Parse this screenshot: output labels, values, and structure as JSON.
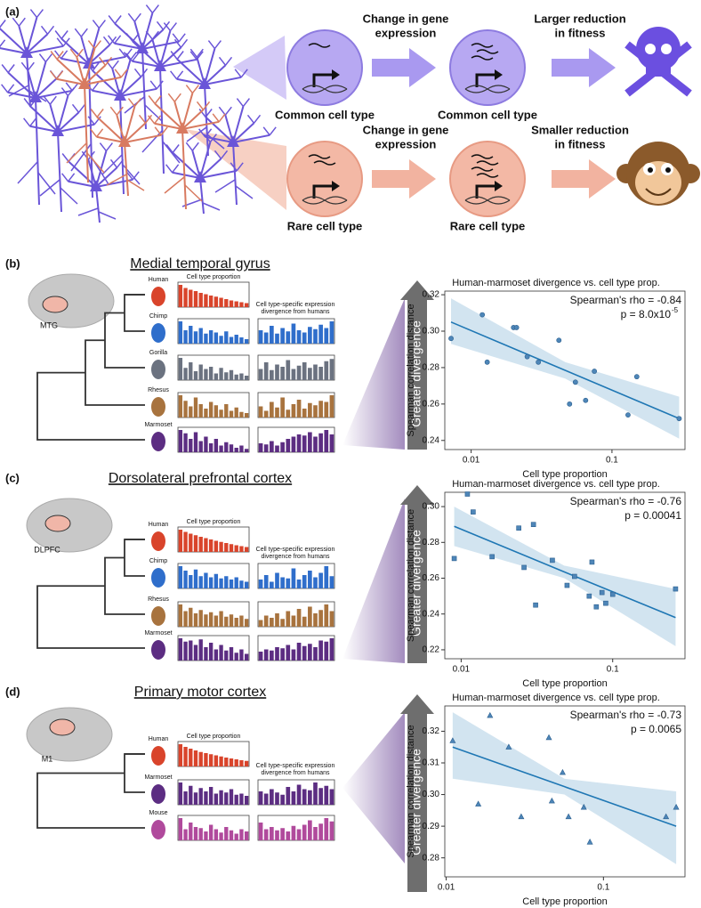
{
  "panel_a": {
    "label": "(a)",
    "rows": [
      {
        "change": [
          "Change in gene",
          "expression"
        ],
        "cells": [
          "Common cell type",
          "Common cell type"
        ],
        "outcome": [
          "Larger reduction",
          "in fitness"
        ]
      },
      {
        "change": [
          "Change in gene",
          "expression"
        ],
        "cells": [
          "Rare cell type",
          "Rare cell type"
        ],
        "outcome": [
          "Smaller reduction",
          "in fitness"
        ]
      }
    ]
  },
  "panels": [
    {
      "label": "(b)",
      "region": "Medial temporal gyrus",
      "brain_label": "MTG",
      "prop_header": "Cell type proportion",
      "div_header": [
        "Cell type-specific expression",
        "divergence from humans"
      ],
      "arrow": "Greater divergence",
      "species": [
        {
          "name": "Human",
          "color": "#d9442b",
          "prop": [
            1,
            0.86,
            0.78,
            0.72,
            0.64,
            0.58,
            0.52,
            0.47,
            0.42,
            0.36,
            0.3,
            0.26,
            0.22,
            0.18
          ]
        },
        {
          "name": "Chimp",
          "color": "#2f6ecb",
          "prop": [
            1,
            0.6,
            0.8,
            0.55,
            0.7,
            0.45,
            0.6,
            0.5,
            0.35,
            0.55,
            0.3,
            0.4,
            0.28,
            0.2
          ],
          "div": [
            0.6,
            0.5,
            0.8,
            0.45,
            0.7,
            0.55,
            0.9,
            0.6,
            0.5,
            0.75,
            0.65,
            0.85,
            0.7,
            1
          ]
        },
        {
          "name": "Gorilla",
          "color": "#6b7280",
          "prop": [
            1,
            0.55,
            0.8,
            0.4,
            0.7,
            0.5,
            0.6,
            0.3,
            0.55,
            0.35,
            0.45,
            0.25,
            0.3,
            0.2
          ],
          "div": [
            0.5,
            0.8,
            0.45,
            0.7,
            0.6,
            0.9,
            0.5,
            0.65,
            0.8,
            0.55,
            0.7,
            0.6,
            0.85,
            0.95
          ]
        },
        {
          "name": "Rhesus",
          "color": "#a8733e",
          "prop": [
            1,
            0.75,
            0.5,
            0.9,
            0.6,
            0.4,
            0.7,
            0.55,
            0.35,
            0.6,
            0.3,
            0.45,
            0.25,
            0.2
          ],
          "div": [
            0.5,
            0.3,
            0.7,
            0.45,
            0.9,
            0.35,
            0.6,
            0.8,
            0.4,
            0.65,
            0.55,
            0.75,
            0.7,
            1
          ]
        },
        {
          "name": "Marmoset",
          "color": "#5c2d82",
          "prop": [
            1,
            0.85,
            0.6,
            0.9,
            0.5,
            0.7,
            0.4,
            0.6,
            0.3,
            0.45,
            0.35,
            0.2,
            0.3,
            0.15
          ],
          "div": [
            0.4,
            0.35,
            0.5,
            0.3,
            0.45,
            0.6,
            0.7,
            0.8,
            0.75,
            0.9,
            0.7,
            0.85,
            1,
            0.8
          ]
        }
      ]
    },
    {
      "label": "(c)",
      "region": "Dorsolateral prefrontal cortex",
      "brain_label": "DLPFC",
      "prop_header": "Cell type proportion",
      "div_header": [
        "Cell type-specific expression",
        "divergence from humans"
      ],
      "arrow": "Greater divergence",
      "species": [
        {
          "name": "Human",
          "color": "#d9442b",
          "prop": [
            1,
            0.9,
            0.82,
            0.75,
            0.68,
            0.62,
            0.56,
            0.5,
            0.45,
            0.4,
            0.35,
            0.3,
            0.26,
            0.22
          ]
        },
        {
          "name": "Chimp",
          "color": "#2f6ecb",
          "prop": [
            1,
            0.8,
            0.6,
            0.85,
            0.55,
            0.7,
            0.5,
            0.65,
            0.45,
            0.55,
            0.4,
            0.5,
            0.35,
            0.3
          ],
          "div": [
            0.4,
            0.6,
            0.3,
            0.7,
            0.5,
            0.45,
            0.9,
            0.4,
            0.6,
            0.8,
            0.5,
            0.7,
            1,
            0.55
          ]
        },
        {
          "name": "Rhesus",
          "color": "#a8733e",
          "prop": [
            1,
            0.7,
            0.85,
            0.6,
            0.75,
            0.55,
            0.65,
            0.5,
            0.7,
            0.45,
            0.55,
            0.4,
            0.5,
            0.35
          ],
          "div": [
            0.3,
            0.5,
            0.4,
            0.6,
            0.35,
            0.7,
            0.5,
            0.8,
            0.45,
            0.9,
            0.6,
            0.75,
            1,
            0.7
          ]
        },
        {
          "name": "Marmoset",
          "color": "#5c2d82",
          "prop": [
            1,
            0.85,
            0.9,
            0.7,
            0.95,
            0.6,
            0.8,
            0.5,
            0.7,
            0.45,
            0.6,
            0.35,
            0.5,
            0.3
          ],
          "div": [
            0.4,
            0.5,
            0.45,
            0.6,
            0.55,
            0.7,
            0.5,
            0.8,
            0.65,
            0.75,
            0.6,
            0.9,
            0.85,
            1
          ]
        }
      ]
    },
    {
      "label": "(d)",
      "region": "Primary motor cortex",
      "brain_label": "M1",
      "prop_header": "Cell type proportion",
      "div_header": [
        "Cell type-specific expression",
        "divergence from humans"
      ],
      "arrow": "Greater divergence",
      "species": [
        {
          "name": "Human",
          "color": "#d9442b",
          "prop": [
            1,
            0.88,
            0.8,
            0.72,
            0.65,
            0.6,
            0.55,
            0.5,
            0.45,
            0.4,
            0.36,
            0.32,
            0.28,
            0.25
          ]
        },
        {
          "name": "Marmoset",
          "color": "#5c2d82",
          "prop": [
            1,
            0.6,
            0.85,
            0.55,
            0.75,
            0.6,
            0.8,
            0.5,
            0.65,
            0.55,
            0.7,
            0.45,
            0.5,
            0.4
          ],
          "div": [
            0.6,
            0.5,
            0.7,
            0.55,
            0.45,
            0.8,
            0.6,
            0.9,
            0.7,
            0.65,
            1,
            0.75,
            0.85,
            0.7
          ]
        },
        {
          "name": "Mouse",
          "color": "#b04a9c",
          "prop": [
            1,
            0.5,
            0.8,
            0.6,
            0.55,
            0.4,
            0.7,
            0.5,
            0.35,
            0.6,
            0.45,
            0.3,
            0.5,
            0.4
          ],
          "div": [
            0.8,
            0.5,
            0.6,
            0.45,
            0.55,
            0.4,
            0.65,
            0.5,
            0.7,
            0.9,
            0.6,
            0.75,
            1,
            0.85
          ]
        }
      ]
    }
  ],
  "chart_data": [
    {
      "type": "scatter",
      "title": "Human-marmoset divergence vs. cell type prop.",
      "x_label": "Cell type proportion",
      "y_label": "Spearman correlation distance",
      "rho_text": "Spearman's rho = -0.84",
      "p_text": "p = 8.0x10",
      "p_exponent": "-5",
      "marker": "circle",
      "color": "#4e86b8",
      "line_color": "#1f77b4",
      "xscale": "log",
      "xlim": [
        0.0065,
        0.33
      ],
      "xticks": [
        0.01,
        0.1
      ],
      "ylim": [
        0.235,
        0.322
      ],
      "yticks": [
        0.24,
        0.26,
        0.28,
        {
          "value": 0.3,
          "label": "0.30"
        },
        0.32
      ],
      "x": [
        0.0072,
        0.012,
        0.013,
        0.02,
        0.021,
        0.025,
        0.03,
        0.042,
        0.05,
        0.055,
        0.065,
        0.075,
        0.13,
        0.15,
        0.3
      ],
      "values": [
        0.296,
        0.309,
        0.283,
        0.302,
        0.302,
        0.286,
        0.283,
        0.295,
        0.26,
        0.272,
        0.262,
        0.278,
        0.254,
        0.275,
        0.252
      ],
      "fit": {
        "x": [
          0.0072,
          0.0465,
          0.3
        ],
        "y": [
          0.305,
          0.2785,
          0.252
        ],
        "lower": [
          0.293,
          0.274,
          0.241
        ],
        "upper": [
          0.318,
          0.283,
          0.264
        ]
      }
    },
    {
      "type": "scatter",
      "title": "Human-marmoset divergence vs. cell type prop.",
      "x_label": "Cell type proportion",
      "y_label": "Spearman correlation distance",
      "rho_text": "Spearman's rho = -0.76",
      "p_text": "p = 0.00041",
      "marker": "square",
      "color": "#4e86b8",
      "line_color": "#1f77b4",
      "xscale": "log",
      "xlim": [
        0.0078,
        0.3
      ],
      "xticks": [
        0.01,
        0.1
      ],
      "ylim": [
        0.215,
        0.308
      ],
      "yticks": [
        0.22,
        0.24,
        0.26,
        0.28,
        {
          "value": 0.3,
          "label": "0.30"
        }
      ],
      "x": [
        0.009,
        0.011,
        0.012,
        0.016,
        0.024,
        0.026,
        0.03,
        0.031,
        0.04,
        0.05,
        0.056,
        0.07,
        0.073,
        0.078,
        0.085,
        0.09,
        0.1,
        0.26
      ],
      "values": [
        0.271,
        0.307,
        0.297,
        0.272,
        0.288,
        0.266,
        0.29,
        0.245,
        0.27,
        0.256,
        0.261,
        0.25,
        0.269,
        0.244,
        0.252,
        0.246,
        0.251,
        0.254
      ],
      "fit": {
        "x": [
          0.009,
          0.048,
          0.26
        ],
        "y": [
          0.289,
          0.2635,
          0.238
        ],
        "lower": [
          0.278,
          0.26,
          0.222
        ],
        "upper": [
          0.3,
          0.267,
          0.254
        ]
      }
    },
    {
      "type": "scatter",
      "title": "Human-marmoset divergence vs. cell type prop.",
      "x_label": "Cell type proportion",
      "y_label": "Spearman correlation distance",
      "rho_text": "Spearman's rho = -0.73",
      "p_text": "p = 0.0065",
      "marker": "triangle",
      "color": "#4e86b8",
      "line_color": "#1f77b4",
      "xscale": "log",
      "xlim": [
        0.0098,
        0.33
      ],
      "xticks": [
        0.01,
        0.1
      ],
      "ylim": [
        0.274,
        0.328
      ],
      "yticks": [
        0.28,
        0.29,
        {
          "value": 0.3,
          "label": "0.30"
        },
        0.31,
        0.32
      ],
      "x": [
        0.011,
        0.016,
        0.019,
        0.025,
        0.03,
        0.045,
        0.047,
        0.055,
        0.06,
        0.075,
        0.082,
        0.25,
        0.29
      ],
      "values": [
        0.317,
        0.297,
        0.325,
        0.315,
        0.293,
        0.318,
        0.298,
        0.307,
        0.293,
        0.296,
        0.285,
        0.293,
        0.296
      ],
      "fit": {
        "x": [
          0.011,
          0.0565,
          0.29
        ],
        "y": [
          0.315,
          0.3025,
          0.29
        ],
        "lower": [
          0.305,
          0.3,
          0.278
        ],
        "upper": [
          0.326,
          0.305,
          0.301
        ]
      }
    }
  ]
}
